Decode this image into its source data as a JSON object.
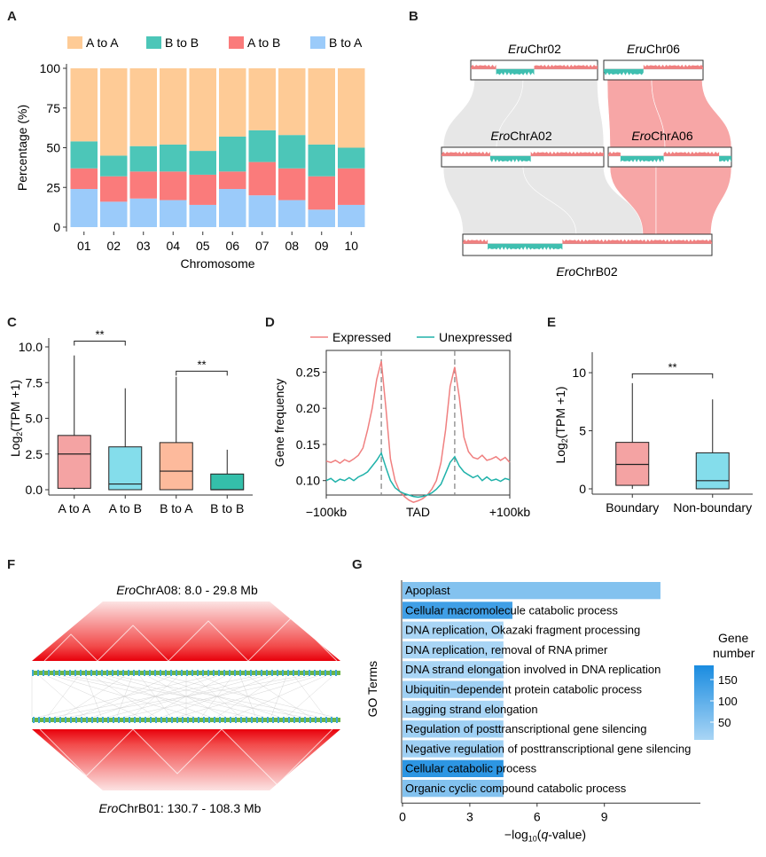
{
  "panels": {
    "A": {
      "label": "A",
      "chart_data": {
        "type": "bar",
        "stacked": true,
        "categories": [
          "01",
          "02",
          "03",
          "04",
          "05",
          "06",
          "07",
          "08",
          "09",
          "10"
        ],
        "series": [
          {
            "name": "A to A",
            "color": "#FECB96",
            "values": [
              46,
              55,
              49,
              48,
              52,
              43,
              39,
              42,
              48,
              50
            ]
          },
          {
            "name": "B to B",
            "color": "#4CC6B8",
            "values": [
              17,
              13,
              16,
              17,
              15,
              22,
              20,
              21,
              20,
              13
            ]
          },
          {
            "name": "A to B",
            "color": "#FA7B7B",
            "values": [
              13,
              16,
              17,
              18,
              19,
              11,
              21,
              20,
              21,
              23
            ]
          },
          {
            "name": "B to A",
            "color": "#9BCBFA",
            "values": [
              24,
              16,
              18,
              17,
              14,
              24,
              20,
              17,
              11,
              14
            ]
          }
        ],
        "xlabel": "Chromosome",
        "ylabel": "Percentage (%)",
        "yticks": [
          "0",
          "25",
          "50",
          "75",
          "100"
        ],
        "ylim": [
          0,
          100
        ],
        "legend": "top"
      }
    },
    "B": {
      "label": "B",
      "tracks": {
        "eru02": {
          "prefix": "Eru",
          "name": "Chr02"
        },
        "eru06": {
          "prefix": "Eru",
          "name": "Chr06"
        },
        "eroA02": {
          "prefix": "Ero",
          "name": "ChrA02"
        },
        "eroA06": {
          "prefix": "Ero",
          "name": "ChrA06"
        },
        "eroB02": {
          "prefix": "Ero",
          "name": "ChrB02"
        }
      },
      "colors": {
        "a_compartment": "#F08080",
        "b_compartment": "#3FBFB0",
        "synteny": "#E6E6E6",
        "highlight": "#F7A2A2"
      }
    },
    "C": {
      "label": "C",
      "chart_data": {
        "type": "box",
        "categories": [
          "A to A",
          "A to B",
          "B to A",
          "B to B"
        ],
        "colors": [
          "#F4A3A3",
          "#84DDEB",
          "#FDBA9C",
          "#34BFAA"
        ],
        "boxes": [
          {
            "min": 0.0,
            "q1": 0.1,
            "median": 2.5,
            "q3": 3.8,
            "max": 9.4
          },
          {
            "min": 0.0,
            "q1": 0.0,
            "median": 0.4,
            "q3": 3.0,
            "max": 7.1
          },
          {
            "min": 0.0,
            "q1": 0.0,
            "median": 1.3,
            "q3": 3.3,
            "max": 7.9
          },
          {
            "min": 0.0,
            "q1": 0.0,
            "median": 0.0,
            "q3": 1.1,
            "max": 2.8
          }
        ],
        "ylabel": "Log2(TPM +1)",
        "ylabel_main": "Log",
        "ylabel_sub": "2",
        "ylabel_rest": "(TPM +1)",
        "yticks": [
          "0.0",
          "2.5",
          "5.0",
          "7.5",
          "10.0"
        ],
        "ylim": [
          0,
          10
        ],
        "significance": [
          "**",
          "**"
        ]
      }
    },
    "D": {
      "label": "D",
      "chart_data": {
        "type": "line",
        "xticklabels": [
          "−100kb",
          "TAD",
          "+100kb"
        ],
        "ylabel": "Gene frequency",
        "yticks": [
          "0.10",
          "0.15",
          "0.20",
          "0.25"
        ],
        "ylim": [
          0.08,
          0.28
        ],
        "series": [
          {
            "name": "Expressed",
            "color": "#F08080",
            "x": [
              0,
              5,
              10,
              15,
              20,
              25,
              30,
              35,
              40,
              45,
              50,
              55,
              60,
              65,
              70,
              75,
              80,
              85,
              90,
              95,
              100,
              105,
              110,
              115,
              120,
              125,
              130,
              135,
              140,
              145,
              150,
              155,
              160,
              165,
              170,
              175,
              180,
              185,
              190,
              195,
              200
            ],
            "values": [
              0.127,
              0.125,
              0.128,
              0.124,
              0.129,
              0.126,
              0.13,
              0.135,
              0.145,
              0.17,
              0.2,
              0.24,
              0.265,
              0.2,
              0.13,
              0.1,
              0.085,
              0.078,
              0.073,
              0.07,
              0.072,
              0.075,
              0.08,
              0.088,
              0.1,
              0.125,
              0.17,
              0.23,
              0.257,
              0.215,
              0.16,
              0.14,
              0.132,
              0.13,
              0.135,
              0.128,
              0.13,
              0.133,
              0.128,
              0.132,
              0.125
            ]
          },
          {
            "name": "Unexpressed",
            "color": "#20B2AA",
            "x": [
              0,
              5,
              10,
              15,
              20,
              25,
              30,
              35,
              40,
              45,
              50,
              55,
              60,
              65,
              70,
              75,
              80,
              85,
              90,
              95,
              100,
              105,
              110,
              115,
              120,
              125,
              130,
              135,
              140,
              145,
              150,
              155,
              160,
              165,
              170,
              175,
              180,
              185,
              190,
              195,
              200
            ],
            "values": [
              0.1,
              0.103,
              0.098,
              0.102,
              0.1,
              0.104,
              0.1,
              0.105,
              0.108,
              0.112,
              0.12,
              0.128,
              0.138,
              0.118,
              0.1,
              0.09,
              0.085,
              0.082,
              0.08,
              0.078,
              0.077,
              0.078,
              0.08,
              0.083,
              0.088,
              0.095,
              0.11,
              0.125,
              0.133,
              0.12,
              0.112,
              0.108,
              0.104,
              0.107,
              0.1,
              0.105,
              0.1,
              0.102,
              0.099,
              0.103,
              0.101
            ]
          }
        ],
        "legend": "top"
      }
    },
    "E": {
      "label": "E",
      "chart_data": {
        "type": "box",
        "categories": [
          "Boundary",
          "Non-boundary"
        ],
        "colors": [
          "#F4A3A3",
          "#84DDEB"
        ],
        "boxes": [
          {
            "min": 0.0,
            "q1": 0.3,
            "median": 2.1,
            "q3": 4.0,
            "max": 9.1
          },
          {
            "min": 0.0,
            "q1": 0.0,
            "median": 0.7,
            "q3": 3.1,
            "max": 7.7
          }
        ],
        "ylabel_main": "Log",
        "ylabel_sub": "2",
        "ylabel_rest": "(TPM +1)",
        "yticks": [
          "0",
          "5",
          "10"
        ],
        "ylim": [
          0,
          11
        ],
        "significance": [
          "**"
        ]
      }
    },
    "F": {
      "label": "F",
      "top_title_prefix": "Ero",
      "top_title_rest": "ChrA08: 8.0 - 29.8 Mb",
      "bottom_title_prefix": "Ero",
      "bottom_title_rest": "ChrB01: 130.7 - 108.3  Mb",
      "colors": {
        "heat": "#E8000B",
        "gene_a": "#3FA9D6",
        "gene_b": "#6BB547"
      }
    },
    "G": {
      "label": "G",
      "chart_data": {
        "type": "bar",
        "orientation": "horizontal",
        "categories": [
          "Apoplast",
          "Cellular macromolecule catabolic process",
          "DNA replication, Okazaki fragment processing",
          "DNA replication, removal of RNA primer",
          "DNA strand elongation involved in DNA replication",
          "Ubiquitin−dependent protein catabolic process",
          "Lagging strand elongation",
          "Regulation of posttranscriptional gene silencing",
          "Negative regulation of posttranscriptional gene silencing",
          "Cellular catabolic process",
          "Organic cyclic compound catabolic process"
        ],
        "values": [
          11.5,
          4.9,
          4.5,
          4.5,
          4.5,
          4.5,
          4.5,
          4.5,
          4.5,
          4.5,
          4.5
        ],
        "gene_number": [
          60,
          130,
          20,
          20,
          20,
          30,
          20,
          30,
          30,
          150,
          60
        ],
        "xlabel_prefix": "−log",
        "xlabel_sub": "10",
        "xlabel_rest": "(q-value)",
        "xlabel_italic": "q",
        "ylabel": "GO Terms",
        "xticks": [
          "0",
          "3",
          "6",
          "9"
        ],
        "xlim": [
          0,
          12.5
        ],
        "legend_title_1": "Gene",
        "legend_title_2": "number",
        "legend_ticks": [
          "150",
          "100",
          "50"
        ],
        "colorscale": [
          "#A9D5F5",
          "#1A8CE0"
        ]
      }
    }
  }
}
